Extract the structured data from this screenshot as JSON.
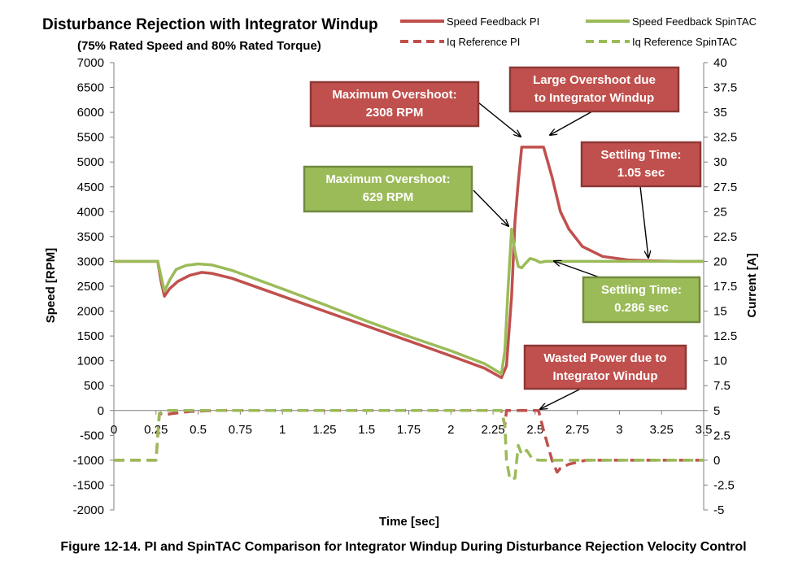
{
  "chart_data": {
    "type": "line",
    "title": "Disturbance Rejection with Integrator Windup",
    "subtitle": "(75% Rated Speed and 80% Rated Torque)",
    "xlabel": "Time [sec]",
    "ylabel": "Speed [RPM]",
    "y2label": "Current [A]",
    "xlim": [
      0,
      3.5
    ],
    "ylim": [
      -2000,
      7000
    ],
    "y2lim": [
      -5,
      40
    ],
    "x_ticks": [
      "0",
      "0.25",
      "0.5",
      "0.75",
      "1",
      "1.25",
      "1.5",
      "1.75",
      "2",
      "2.25",
      "2.5",
      "2.75",
      "3",
      "3.25",
      "3.5"
    ],
    "y_ticks": [
      "7000",
      "6500",
      "6000",
      "5500",
      "5000",
      "4500",
      "4000",
      "3500",
      "3000",
      "2500",
      "2000",
      "1500",
      "1000",
      "500",
      "0",
      "-500",
      "-1000",
      "-1500",
      "-2000"
    ],
    "y2_ticks": [
      "40",
      "37.5",
      "35",
      "32.5",
      "30",
      "27.5",
      "25",
      "22.5",
      "20",
      "17.5",
      "15",
      "12.5",
      "10",
      "7.5",
      "5",
      "2.5",
      "0",
      "-2.5",
      "-5"
    ],
    "grid": false,
    "legend_position": "top-right",
    "series": [
      {
        "name": "Speed Feedback PI",
        "axis": "left",
        "style": "solid",
        "color": "#c0504d",
        "x": [
          0,
          0.26,
          0.28,
          0.3,
          0.33,
          0.38,
          0.45,
          0.52,
          0.58,
          0.7,
          1.0,
          1.25,
          1.5,
          1.75,
          2.0,
          2.2,
          2.3,
          2.33,
          2.36,
          2.38,
          2.4,
          2.42,
          2.45,
          2.5,
          2.55,
          2.6,
          2.65,
          2.7,
          2.78,
          2.9,
          3.05,
          3.2,
          3.35,
          3.5
        ],
        "y": [
          3000,
          3000,
          2600,
          2300,
          2450,
          2600,
          2720,
          2780,
          2760,
          2660,
          2300,
          2000,
          1700,
          1400,
          1100,
          850,
          660,
          900,
          2300,
          3800,
          4600,
          5300,
          5300,
          5300,
          5300,
          4700,
          4000,
          3650,
          3300,
          3100,
          3030,
          3010,
          3000,
          3000
        ]
      },
      {
        "name": "Speed Feedback SpinTAC",
        "axis": "left",
        "style": "solid",
        "color": "#9bbb59",
        "x": [
          0,
          0.26,
          0.28,
          0.3,
          0.33,
          0.37,
          0.43,
          0.5,
          0.58,
          0.7,
          1.0,
          1.25,
          1.5,
          1.75,
          2.0,
          2.2,
          2.3,
          2.32,
          2.34,
          2.36,
          2.38,
          2.4,
          2.42,
          2.44,
          2.47,
          2.5,
          2.53,
          2.56,
          2.6,
          2.65,
          2.8,
          3.0,
          3.5
        ],
        "y": [
          3000,
          3000,
          2700,
          2400,
          2620,
          2840,
          2920,
          2950,
          2930,
          2820,
          2450,
          2130,
          1800,
          1490,
          1200,
          940,
          740,
          1200,
          2500,
          3650,
          3200,
          2900,
          2870,
          2950,
          3060,
          3030,
          2980,
          3000,
          3000,
          3000,
          3000,
          3000,
          3000
        ]
      },
      {
        "name": "Iq Reference PI",
        "axis": "right",
        "style": "dashed",
        "color": "#c0504d",
        "x": [
          0,
          0.25,
          0.27,
          0.31,
          0.35,
          0.45,
          0.6,
          1.0,
          1.5,
          2.0,
          2.3,
          2.32,
          2.33,
          2.35,
          2.52,
          2.55,
          2.6,
          2.63,
          2.65,
          2.7,
          2.75,
          2.8,
          3.0,
          3.5
        ],
        "y": [
          0,
          0,
          4.7,
          4.6,
          4.7,
          4.9,
          5.0,
          5.0,
          5.0,
          5.0,
          5.0,
          3.5,
          5.0,
          5.0,
          5.0,
          3.0,
          0,
          -1.2,
          -0.8,
          -0.4,
          -0.2,
          0,
          0,
          0
        ]
      },
      {
        "name": "Iq Reference SpinTAC",
        "axis": "right",
        "style": "dashed",
        "color": "#9bbb59",
        "x": [
          0,
          0.25,
          0.27,
          0.3,
          0.33,
          0.5,
          1.0,
          1.5,
          2.0,
          2.3,
          2.32,
          2.33,
          2.35,
          2.38,
          2.4,
          2.42,
          2.45,
          2.48,
          2.52,
          2.55,
          2.6,
          3.0,
          3.5
        ],
        "y": [
          0,
          0,
          4.7,
          5.0,
          5.0,
          5.0,
          5.0,
          5.0,
          5.0,
          5.0,
          3.5,
          0,
          -1.9,
          -1.8,
          1.5,
          0.6,
          1.0,
          0.2,
          0,
          0,
          0,
          0,
          0
        ]
      }
    ],
    "annotations": [
      {
        "lines": [
          "Maximum Overshoot:",
          "2308 RPM"
        ],
        "color": "#c0504d"
      },
      {
        "lines": [
          "Large Overshoot due",
          "to Integrator Windup"
        ],
        "color": "#c0504d"
      },
      {
        "lines": [
          "Settling Time:",
          "1.05 sec"
        ],
        "color": "#c0504d"
      },
      {
        "lines": [
          "Maximum Overshoot:",
          "629 RPM"
        ],
        "color": "#9bbb59"
      },
      {
        "lines": [
          "Settling Time:",
          "0.286 sec"
        ],
        "color": "#9bbb59"
      },
      {
        "lines": [
          "Wasted Power due to",
          "Integrator Windup"
        ],
        "color": "#c0504d"
      }
    ]
  },
  "caption": "Figure 12-14. PI and SpinTAC Comparison for Integrator Windup During Disturbance Rejection Velocity Control"
}
